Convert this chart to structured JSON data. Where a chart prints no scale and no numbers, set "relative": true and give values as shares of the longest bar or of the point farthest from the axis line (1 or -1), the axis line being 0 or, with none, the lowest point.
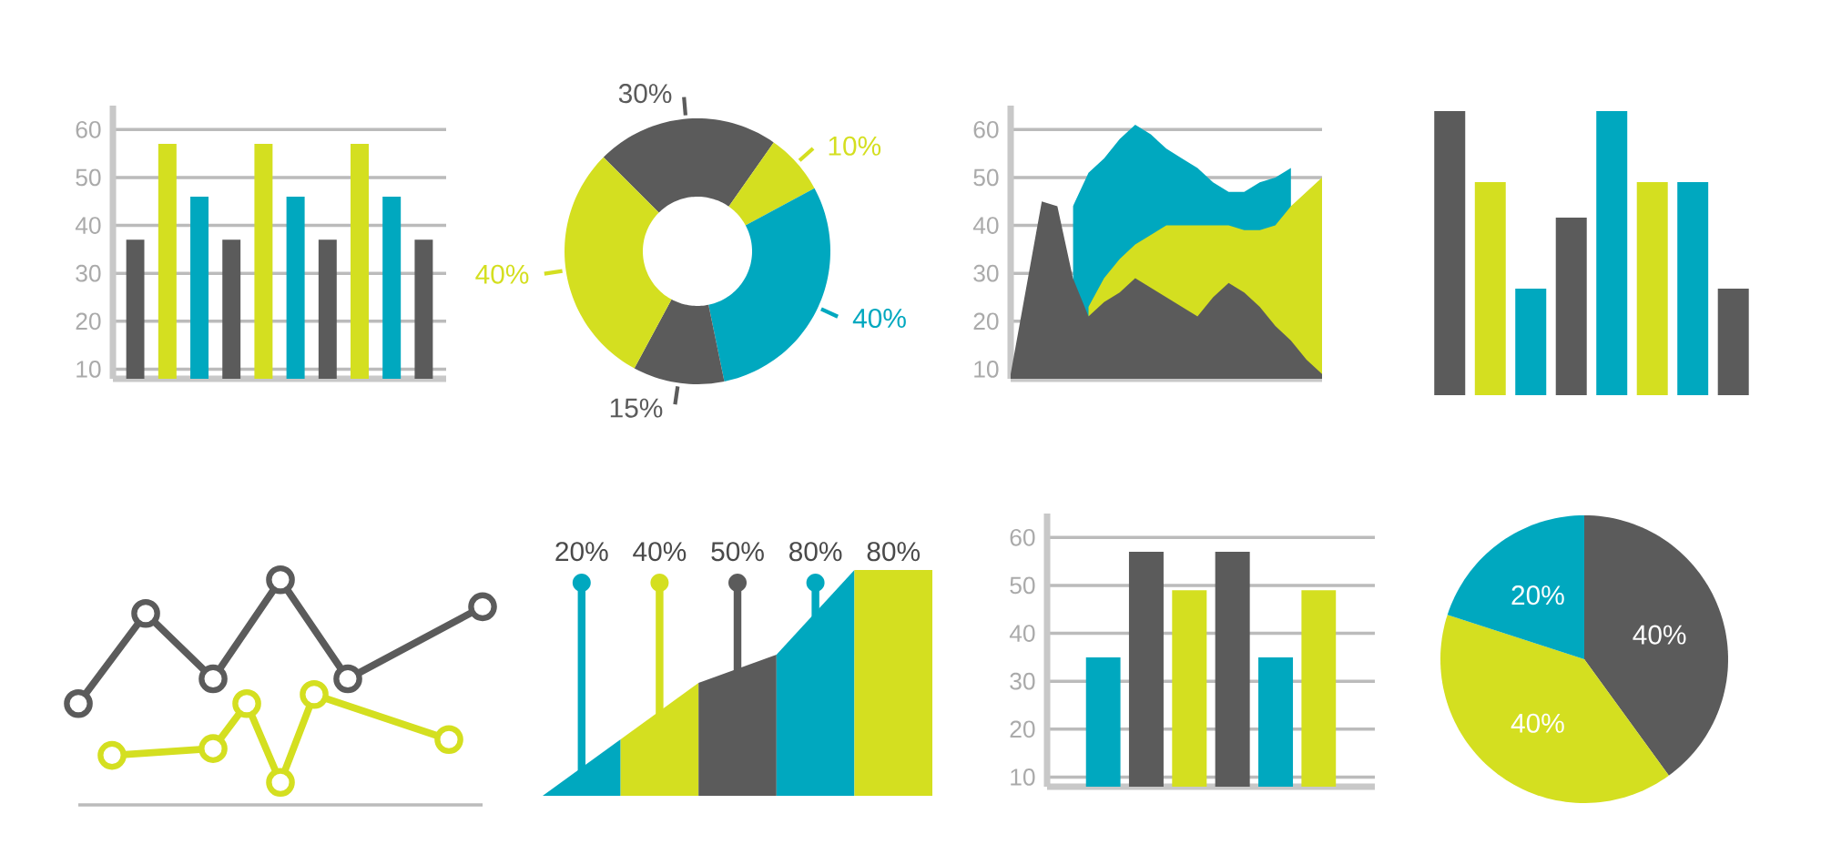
{
  "chart_data": [
    {
      "type": "bar",
      "categories": [
        null,
        null,
        null,
        null,
        null,
        null,
        null,
        null,
        null,
        null
      ],
      "values": [
        37,
        57,
        46,
        37,
        57,
        46,
        37,
        57,
        46,
        37
      ],
      "colors": [
        "#5b5b5b",
        "#d4df20",
        "#00a8bf",
        "#5b5b5b",
        "#d4df20",
        "#00a8bf",
        "#5b5b5b",
        "#d4df20",
        "#00a8bf",
        "#5b5b5b"
      ],
      "ylim": [
        8,
        65
      ],
      "yticks": [
        10,
        20,
        30,
        40,
        50,
        60
      ],
      "grid": "y",
      "tick_labels": "y"
    },
    {
      "type": "donut",
      "categories": [
        null,
        null,
        null,
        null,
        null
      ],
      "values": [
        30,
        10,
        40,
        15,
        40
      ],
      "colors": [
        "#5b5b5b",
        "#d4df20",
        "#00a8bf",
        "#5b5b5b",
        "#d4df20"
      ],
      "value_labels": [
        "30%",
        "10%",
        "40%",
        "15%",
        "40%"
      ]
    },
    {
      "type": "area",
      "categories": [
        null,
        null,
        null,
        null,
        null,
        null,
        null,
        null,
        null,
        null,
        null,
        null,
        null,
        null,
        null,
        null,
        null,
        null,
        null,
        null,
        null
      ],
      "series": [
        {
          "color": "#00a8bf",
          "values": [
            null,
            null,
            null,
            null,
            44,
            51,
            54,
            58,
            61,
            59,
            56,
            54,
            52,
            49,
            47,
            47,
            49,
            50,
            52,
            null,
            null
          ]
        },
        {
          "color": "#d4df20",
          "values": [
            null,
            null,
            null,
            null,
            null,
            23,
            29,
            33,
            36,
            38,
            40,
            40,
            40,
            40,
            40,
            39,
            39,
            40,
            44,
            47,
            50
          ]
        },
        {
          "color": "#5b5b5b",
          "values": [
            9,
            27,
            45,
            44,
            29,
            21,
            24,
            26,
            29,
            27,
            25,
            23,
            21,
            25,
            28,
            26,
            23,
            19,
            16,
            12,
            9
          ]
        }
      ],
      "ylim": [
        8,
        65
      ],
      "yticks": [
        10,
        20,
        30,
        40,
        50,
        60
      ],
      "grid": "y",
      "tick_labels": "y"
    },
    {
      "type": "bar",
      "relative": true,
      "categories": [
        null,
        null,
        null,
        null,
        null,
        null,
        null,
        null
      ],
      "values": [
        1,
        0.75,
        0.375,
        0.625,
        1,
        0.75,
        0.75,
        0.375
      ],
      "colors": [
        "#5b5b5b",
        "#d4df20",
        "#00a8bf",
        "#5b5b5b",
        "#00a8bf",
        "#d4df20",
        "#00a8bf",
        "#5b5b5b"
      ]
    },
    {
      "type": "line",
      "relative": true,
      "categories": [
        null,
        null,
        null,
        null,
        null,
        null,
        null,
        null,
        null,
        null,
        null,
        null,
        null
      ],
      "series": [
        {
          "color": "#5b5b5b",
          "values": [
            0.45,
            null,
            0.85,
            null,
            0.56,
            null,
            1,
            null,
            0.56,
            null,
            null,
            null,
            0.88
          ]
        },
        {
          "color": "#d4df20",
          "values": [
            null,
            0.22,
            null,
            null,
            0.25,
            0.45,
            0.1,
            0.49,
            null,
            null,
            null,
            0.29,
            null
          ]
        }
      ],
      "marker": "circle",
      "tick_labels": false
    },
    {
      "type": "other",
      "categories": [
        null,
        null,
        null,
        null,
        null
      ],
      "values": [
        20,
        40,
        50,
        80,
        80
      ],
      "colors": [
        "#00a8bf",
        "#d4df20",
        "#5b5b5b",
        "#00a8bf",
        "#d4df20"
      ],
      "value_labels": [
        "20%",
        "40%",
        "50%",
        "80%",
        "80%"
      ]
    },
    {
      "type": "bar",
      "categories": [
        null,
        null,
        null,
        null,
        null,
        null
      ],
      "values": [
        35,
        57,
        49,
        57,
        35,
        49
      ],
      "colors": [
        "#00a8bf",
        "#5b5b5b",
        "#d4df20",
        "#5b5b5b",
        "#00a8bf",
        "#d4df20"
      ],
      "ylim": [
        8,
        65
      ],
      "yticks": [
        10,
        20,
        30,
        40,
        50,
        60
      ],
      "grid": "y",
      "tick_labels": "y"
    },
    {
      "type": "pie",
      "categories": [
        null,
        null,
        null
      ],
      "values": [
        40,
        40,
        20
      ],
      "colors": [
        "#5b5b5b",
        "#d4df20",
        "#00a8bf"
      ],
      "value_labels": [
        "40%",
        "40%",
        "20%"
      ]
    }
  ]
}
